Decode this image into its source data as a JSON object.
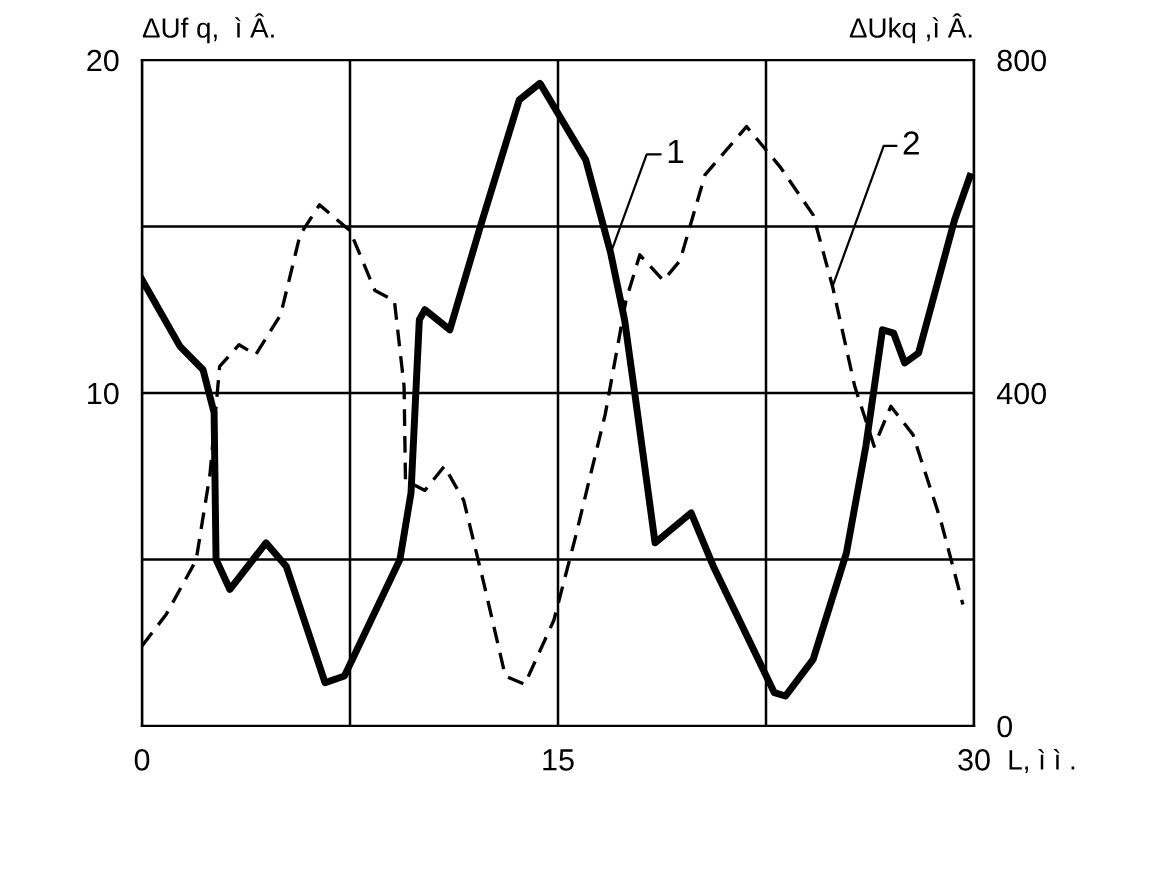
{
  "chart_data": {
    "type": "line",
    "ylabel": "ΔUf q,  ì Â.",
    "y2label": "ΔUkq ,ì Â.",
    "xlabel": "L, ì ì .",
    "xlim": [
      0,
      30
    ],
    "xticks": [
      0,
      {
        "value": 7.5,
        "label": null
      },
      15,
      {
        "value": 22.5,
        "label": null
      },
      30
    ],
    "ylim": [
      0,
      20
    ],
    "yticks": [
      {
        "value": 0,
        "label": null
      },
      {
        "value": 5,
        "label": null
      },
      10,
      {
        "value": 15,
        "label": null
      },
      20
    ],
    "y2lim": [
      0,
      800
    ],
    "y2ticks": [
      0,
      400,
      800
    ],
    "grid": true,
    "legend": false,
    "marker": "none",
    "series": [
      {
        "color": "#000000",
        "line_style": "solid",
        "x": [
          0,
          1.37,
          2.2,
          2.6,
          2.67,
          3.17,
          4.47,
          5.2,
          6.6,
          7.3,
          9.3,
          9.7,
          10.0,
          10.2,
          11.1,
          12.2,
          13.6,
          14.35,
          16.0,
          16.9,
          17.4,
          17.8,
          18.5,
          19.8,
          20.6,
          22.8,
          23.2,
          24.2,
          25.4,
          26.1,
          26.7,
          27.1,
          27.5,
          28.0,
          29.3,
          29.85
        ],
        "values": [
          13.4,
          11.4,
          10.7,
          9.4,
          5.0,
          4.1,
          5.5,
          4.8,
          1.3,
          1.5,
          5.0,
          7.0,
          12.2,
          12.5,
          11.9,
          15.0,
          18.8,
          19.3,
          17.0,
          14.2,
          12.2,
          9.8,
          5.5,
          6.4,
          4.8,
          1.0,
          0.9,
          2.0,
          5.2,
          8.4,
          11.9,
          11.8,
          10.9,
          11.2,
          15.2,
          16.5
        ]
      },
      {
        "color": "#000000",
        "line_style": "dashed",
        "axis": "y2",
        "x": [
          0,
          0.87,
          1.95,
          2.45,
          2.8,
          3.5,
          4.1,
          5.0,
          5.7,
          6.4,
          7.5,
          8.4,
          9.1,
          9.45,
          9.5,
          10.2,
          10.9,
          11.6,
          12.3,
          13.1,
          13.8,
          14.85,
          15.6,
          16.7,
          17.45,
          17.95,
          18.8,
          19.4,
          20.3,
          21.8,
          23.0,
          24.2,
          24.9,
          25.7,
          26.4,
          27.0,
          27.8,
          28.8,
          29.6
        ],
        "values": [
          96,
          134,
          199,
          302,
          432,
          458,
          446,
          494,
          590,
          626,
          595,
          523,
          511,
          408,
          295,
          283,
          312,
          271,
          175,
          60,
          50,
          127,
          223,
          374,
          511,
          566,
          535,
          559,
          662,
          720,
          672,
          614,
          528,
          408,
          336,
          384,
          350,
          247,
          146
        ]
      }
    ],
    "annotations": [
      {
        "text": "1",
        "x": 16.9,
        "y": 14.2
      },
      {
        "text": "2",
        "x": 24.9,
        "y": 13.2
      }
    ]
  }
}
